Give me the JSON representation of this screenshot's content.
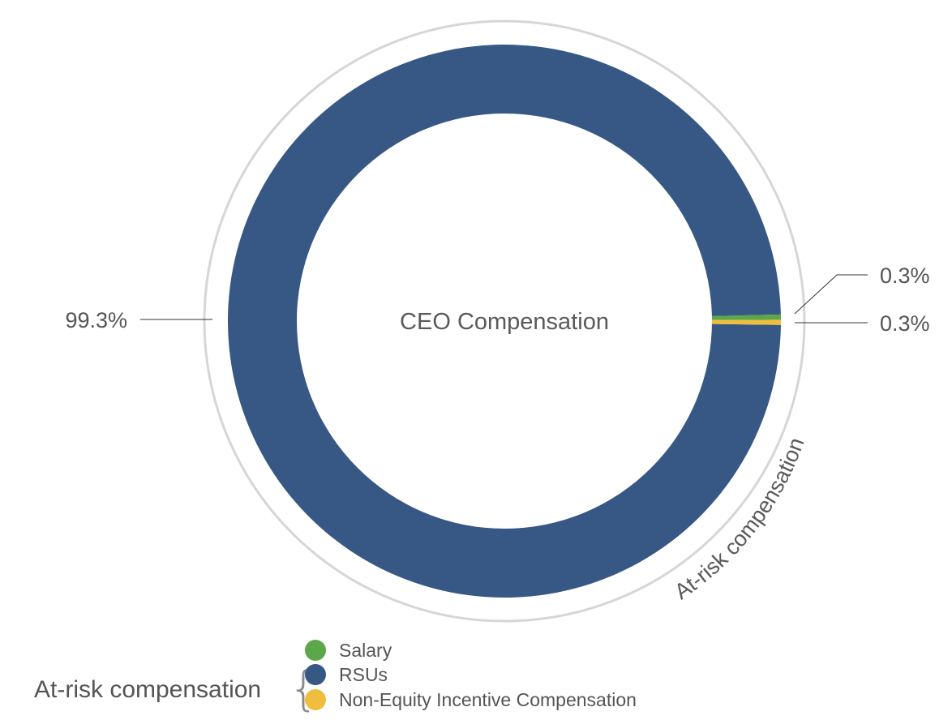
{
  "chart_data": {
    "type": "pie",
    "variant": "donut",
    "center_label": "CEO Compensation",
    "slices": [
      {
        "name": "RSUs",
        "value": 99.3,
        "label": "99.3%",
        "color": "#375785"
      },
      {
        "name": "Salary",
        "value": 0.3,
        "label": "0.3%",
        "color": "#5ba74a"
      },
      {
        "name": "Non-Equity Incentive Compensation",
        "value": 0.3,
        "label": "0.3%",
        "color": "#f1bd3f"
      }
    ],
    "outer_ring_label": "At-risk compensation",
    "legend": {
      "group_label": "At-risk compensation",
      "placement": "bottom",
      "items": [
        {
          "label": "Salary",
          "color": "#5ba74a"
        },
        {
          "label": "RSUs",
          "color": "#375785"
        },
        {
          "label": "Non-Equity Incentive Compensation",
          "color": "#f1bd3f"
        }
      ]
    }
  }
}
